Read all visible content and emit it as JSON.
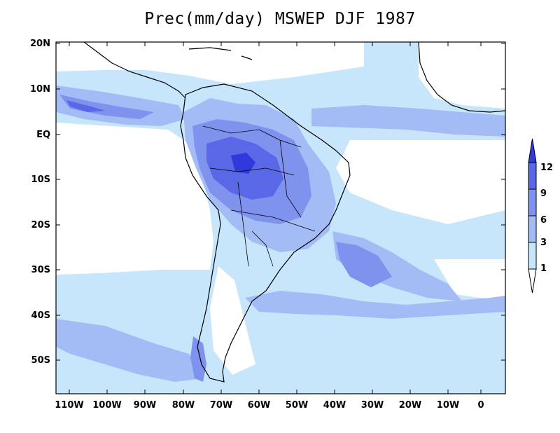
{
  "title": "Prec(mm/day) MSWEP DJF 1987",
  "map": {
    "lat_labels": [
      "20N",
      "10N",
      "EQ",
      "10S",
      "20S",
      "30S",
      "40S",
      "50S"
    ],
    "lon_labels": [
      "110W",
      "100W",
      "90W",
      "80W",
      "70W",
      "60W",
      "50W",
      "40W",
      "30W",
      "20W",
      "10W",
      "0"
    ]
  },
  "legend": {
    "labels": [
      "1",
      "3",
      "6",
      "9",
      "12"
    ],
    "colors": {
      "lt1": "#ffffff",
      "c1_3": "#c8e6fb",
      "c3_6": "#a4bcf5",
      "c6_9": "#7f92ee",
      "c9_12": "#5968e6",
      "gt12": "#2f39dc"
    }
  }
}
